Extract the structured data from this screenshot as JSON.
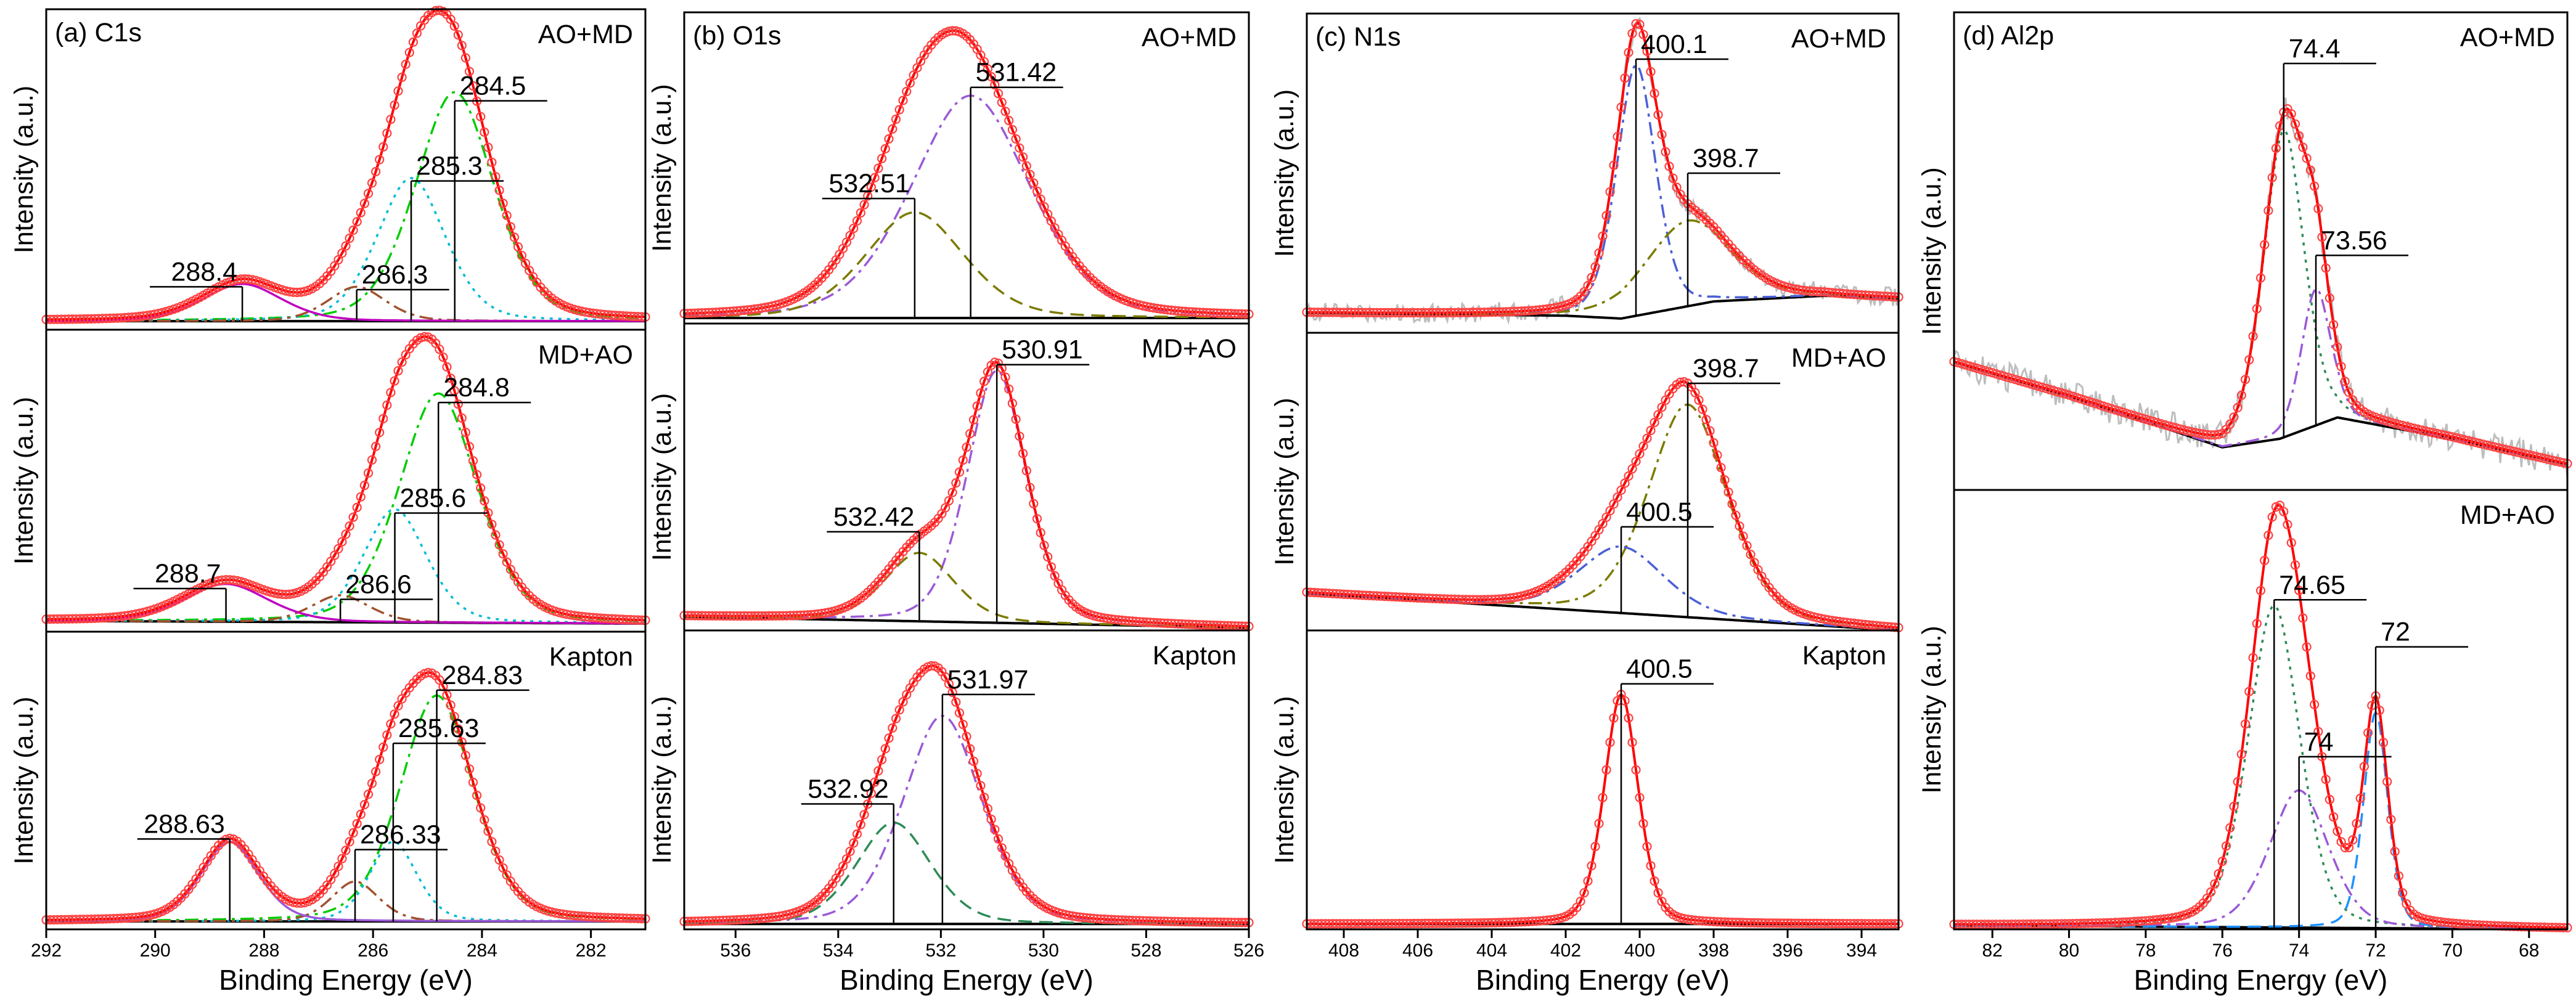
{
  "colors": {
    "raw": "#bdbdbd",
    "envelope": "#ff0000",
    "marker": "#ff4040",
    "background": "#000000",
    "peak_a": "#00cc00",
    "peak_b": "#00bcd4",
    "peak_c": "#a0522d",
    "peak_d": "#c000c0",
    "peak_e": "#9b59d6",
    "peak_f": "#7b7b00",
    "peak_g": "#4a5fd6",
    "peak_h": "#2e8b57",
    "peak_i": "#1e90ff"
  },
  "chart_data": [
    {
      "type": "line",
      "panel_label": "(a) C1s",
      "title": "(a) C1s",
      "xlabel": "Binding Energy (eV)",
      "ylabel": "Intensity (a.u.)",
      "xlim": [
        292,
        281
      ],
      "xticks": [
        292,
        290,
        288,
        286,
        284,
        282
      ],
      "subplots": [
        {
          "name": "AO+MD",
          "ylim": [
            0,
            1.12
          ],
          "baseline": [
            [
              292,
              0.03
            ],
            [
              281,
              0.03
            ]
          ],
          "components": [
            {
              "center": 284.5,
              "height": 0.8,
              "width": 0.75,
              "color_key": "peak_a",
              "dash": "dashdot"
            },
            {
              "center": 285.3,
              "height": 0.5,
              "width": 0.65,
              "color_key": "peak_b",
              "dash": "dot"
            },
            {
              "center": 286.3,
              "height": 0.12,
              "width": 0.55,
              "color_key": "peak_c",
              "dash": "dashdot"
            },
            {
              "center": 288.4,
              "height": 0.13,
              "width": 0.75,
              "color_key": "peak_d",
              "dash": "solid"
            }
          ],
          "annotations": [
            {
              "label": "284.5",
              "x": 284.5,
              "y": 0.8
            },
            {
              "label": "285.3",
              "x": 285.3,
              "y": 0.52
            },
            {
              "label": "286.3",
              "x": 286.3,
              "y": 0.14
            },
            {
              "label": "288.4",
              "x": 288.4,
              "y": 0.15
            }
          ]
        },
        {
          "name": "MD+AO",
          "ylim": [
            0,
            1.12
          ],
          "baseline": [
            [
              292,
              0.04
            ],
            [
              281,
              0.03
            ]
          ],
          "components": [
            {
              "center": 284.8,
              "height": 0.85,
              "width": 0.75,
              "color_key": "peak_a",
              "dash": "dashdot"
            },
            {
              "center": 285.6,
              "height": 0.42,
              "width": 0.6,
              "color_key": "peak_b",
              "dash": "dot"
            },
            {
              "center": 286.6,
              "height": 0.1,
              "width": 0.55,
              "color_key": "peak_c",
              "dash": "dashdot"
            },
            {
              "center": 288.7,
              "height": 0.14,
              "width": 0.8,
              "color_key": "peak_d",
              "dash": "solid"
            }
          ],
          "annotations": [
            {
              "label": "284.8",
              "x": 284.8,
              "y": 0.85
            },
            {
              "label": "285.6",
              "x": 285.6,
              "y": 0.44
            },
            {
              "label": "286.6",
              "x": 286.6,
              "y": 0.12
            },
            {
              "label": "288.7",
              "x": 288.7,
              "y": 0.16
            }
          ]
        },
        {
          "name": "Kapton",
          "ylim": [
            0,
            1.12
          ],
          "baseline": [
            [
              292,
              0.03
            ],
            [
              281,
              0.03
            ]
          ],
          "components": [
            {
              "center": 284.83,
              "height": 0.85,
              "width": 0.7,
              "color_key": "peak_a",
              "dash": "dashdot"
            },
            {
              "center": 285.63,
              "height": 0.3,
              "width": 0.45,
              "color_key": "peak_b",
              "dash": "dot"
            },
            {
              "center": 286.33,
              "height": 0.15,
              "width": 0.45,
              "color_key": "peak_c",
              "dash": "dashdot"
            },
            {
              "center": 288.63,
              "height": 0.3,
              "width": 0.55,
              "color_key": "peak_e",
              "dash": "solid"
            }
          ],
          "annotations": [
            {
              "label": "284.83",
              "x": 284.83,
              "y": 0.9
            },
            {
              "label": "285.63",
              "x": 285.63,
              "y": 0.7
            },
            {
              "label": "286.33",
              "x": 286.33,
              "y": 0.3
            },
            {
              "label": "288.63",
              "x": 288.63,
              "y": 0.34
            }
          ]
        }
      ]
    },
    {
      "type": "line",
      "panel_label": "(b) O1s",
      "title": "(b) O1s",
      "xlabel": "Binding Energy (eV)",
      "ylabel": "Intensity (a.u.)",
      "xlim": [
        537,
        526
      ],
      "xticks": [
        536,
        534,
        532,
        530,
        528,
        526
      ],
      "subplots": [
        {
          "name": "AO+MD",
          "ylim": [
            0,
            1.12
          ],
          "baseline": [
            [
              537,
              0.02
            ],
            [
              526,
              0.02
            ]
          ],
          "components": [
            {
              "center": 531.42,
              "height": 0.8,
              "width": 1.2,
              "color_key": "peak_e",
              "dash": "dashdot"
            },
            {
              "center": 532.51,
              "height": 0.38,
              "width": 1.0,
              "color_key": "peak_f",
              "dash": "dash"
            }
          ],
          "annotations": [
            {
              "label": "531.42",
              "x": 531.42,
              "y": 0.85
            },
            {
              "label": "532.51",
              "x": 532.51,
              "y": 0.45
            }
          ]
        },
        {
          "name": "MD+AO",
          "ylim": [
            0,
            1.12
          ],
          "baseline": [
            [
              537,
              0.05
            ],
            [
              526,
              0.01
            ]
          ],
          "components": [
            {
              "center": 530.91,
              "height": 0.92,
              "width": 0.6,
              "color_key": "peak_e",
              "dash": "dashdot"
            },
            {
              "center": 532.42,
              "height": 0.25,
              "width": 0.7,
              "color_key": "peak_f",
              "dash": "dash"
            }
          ],
          "annotations": [
            {
              "label": "530.91",
              "x": 530.91,
              "y": 0.97
            },
            {
              "label": "532.42",
              "x": 532.42,
              "y": 0.36
            }
          ]
        },
        {
          "name": "Kapton",
          "ylim": [
            0,
            1.12
          ],
          "baseline": [
            [
              537,
              0.02
            ],
            [
              526,
              0.02
            ]
          ],
          "components": [
            {
              "center": 531.97,
              "height": 0.78,
              "width": 0.8,
              "color_key": "peak_e",
              "dash": "dashdot"
            },
            {
              "center": 532.92,
              "height": 0.38,
              "width": 0.75,
              "color_key": "peak_h",
              "dash": "dash"
            }
          ],
          "annotations": [
            {
              "label": "531.97",
              "x": 531.97,
              "y": 0.88
            },
            {
              "label": "532.92",
              "x": 532.92,
              "y": 0.47
            }
          ]
        }
      ]
    },
    {
      "type": "line",
      "panel_label": "(c) N1s",
      "title": "(c) N1s",
      "xlabel": "Binding Energy (eV)",
      "ylabel": "Intensity (a.u.)",
      "xlim": [
        409,
        393
      ],
      "xticks": [
        408,
        406,
        404,
        402,
        400,
        398,
        396,
        394
      ],
      "subplots": [
        {
          "name": "AO+MD",
          "ylim": [
            0,
            1.12
          ],
          "baseline": [
            [
              409,
              0.07
            ],
            [
              402,
              0.06
            ],
            [
              400.5,
              0.05
            ],
            [
              398,
              0.11
            ],
            [
              395,
              0.13
            ],
            [
              393,
              0.12
            ]
          ],
          "components": [
            {
              "center": 400.1,
              "height": 0.88,
              "width": 0.55,
              "color_key": "peak_g",
              "dash": "dashdot"
            },
            {
              "center": 398.7,
              "height": 0.3,
              "width": 1.2,
              "color_key": "peak_f",
              "dash": "dashdot"
            }
          ],
          "annotations": [
            {
              "label": "400.1",
              "x": 400.1,
              "y": 0.96
            },
            {
              "label": "398.7",
              "x": 398.7,
              "y": 0.56
            }
          ]
        },
        {
          "name": "MD+AO",
          "ylim": [
            0,
            1.12
          ],
          "baseline": [
            [
              409,
              0.14
            ],
            [
              393,
              0.0
            ]
          ],
          "components": [
            {
              "center": 398.7,
              "height": 0.8,
              "width": 1.1,
              "color_key": "peak_f",
              "dash": "dashdot"
            },
            {
              "center": 400.5,
              "height": 0.25,
              "width": 1.2,
              "color_key": "peak_g",
              "dash": "dashdot"
            }
          ],
          "annotations": [
            {
              "label": "398.7",
              "x": 398.7,
              "y": 0.93
            },
            {
              "label": "400.5",
              "x": 400.5,
              "y": 0.39
            }
          ]
        },
        {
          "name": "Kapton",
          "ylim": [
            0,
            1.12
          ],
          "baseline": [
            [
              409,
              0.02
            ],
            [
              393,
              0.02
            ]
          ],
          "components": [
            {
              "center": 400.5,
              "height": 0.86,
              "width": 0.48,
              "color_key": "peak_g",
              "dash": "dashdot"
            }
          ],
          "annotations": [
            {
              "label": "400.5",
              "x": 400.5,
              "y": 0.92
            }
          ]
        }
      ]
    },
    {
      "type": "line",
      "panel_label": "(d) Al2p",
      "title": "(d) Al2p",
      "xlabel": "Binding Energy (eV)",
      "ylabel": "Intensity (a.u.)",
      "xlim": [
        83,
        67
      ],
      "xticks": [
        82,
        80,
        78,
        76,
        74,
        72,
        70,
        68
      ],
      "subplots": [
        {
          "name": "AO+MD",
          "ylim": [
            0,
            1.12
          ],
          "baseline": [
            [
              83,
              0.3
            ],
            [
              80,
              0.22
            ],
            [
              76,
              0.1
            ],
            [
              74.5,
              0.12
            ],
            [
              73,
              0.17
            ],
            [
              70,
              0.12
            ],
            [
              67,
              0.06
            ]
          ],
          "components": [
            {
              "center": 74.4,
              "height": 0.72,
              "width": 0.55,
              "color_key": "peak_h",
              "dash": "dot"
            },
            {
              "center": 73.56,
              "height": 0.32,
              "width": 0.4,
              "color_key": "peak_e",
              "dash": "dashdot"
            }
          ],
          "annotations": [
            {
              "label": "74.4",
              "x": 74.4,
              "y": 1.0
            },
            {
              "label": "73.56",
              "x": 73.56,
              "y": 0.55
            }
          ]
        },
        {
          "name": "MD+AO",
          "ylim": [
            0,
            1.12
          ],
          "baseline": [
            [
              83,
              0.01
            ],
            [
              67,
              0.0
            ]
          ],
          "components": [
            {
              "center": 74.65,
              "height": 0.82,
              "width": 0.7,
              "color_key": "peak_h",
              "dash": "dot"
            },
            {
              "center": 74.0,
              "height": 0.35,
              "width": 0.8,
              "color_key": "peak_e",
              "dash": "dashdot"
            },
            {
              "center": 72.0,
              "height": 0.55,
              "width": 0.33,
              "color_key": "peak_i",
              "dash": "dash"
            }
          ],
          "annotations": [
            {
              "label": "74.65",
              "x": 74.65,
              "y": 0.84
            },
            {
              "label": "74",
              "x": 74.0,
              "y": 0.44
            },
            {
              "label": "72",
              "x": 72.0,
              "y": 0.72
            }
          ]
        }
      ]
    }
  ]
}
